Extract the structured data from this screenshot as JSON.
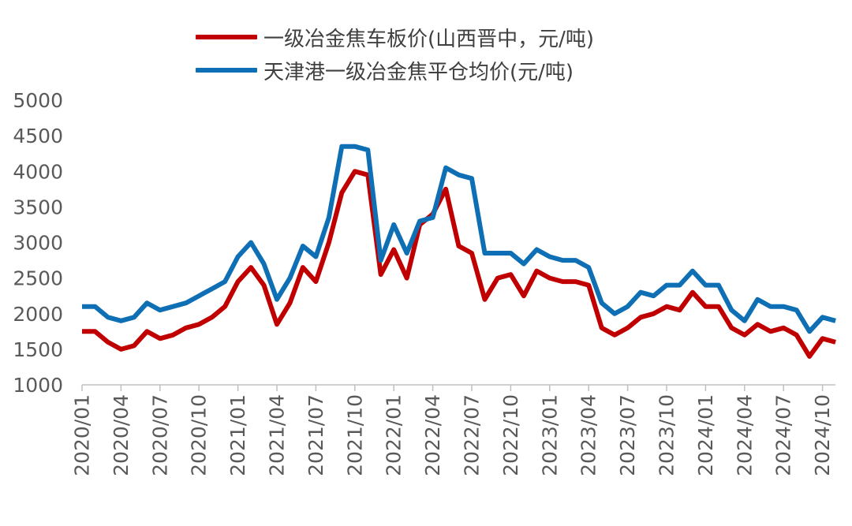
{
  "chart_data": {
    "type": "line",
    "title": "",
    "xlabel": "",
    "ylabel": "",
    "ylim": [
      1000,
      5000
    ],
    "yticks": [
      "5000",
      "4500",
      "4000",
      "3500",
      "3000",
      "2500",
      "2000",
      "1500",
      "1000"
    ],
    "xticks": [
      "2020/01",
      "2020/04",
      "2020/07",
      "2020/10",
      "2021/01",
      "2021/04",
      "2021/07",
      "2021/10",
      "2022/01",
      "2022/04",
      "2022/07",
      "2022/10",
      "2023/01",
      "2023/04",
      "2023/07",
      "2023/10",
      "2024/01",
      "2024/04",
      "2024/07",
      "2024/10"
    ],
    "x_start": "2020/01",
    "x_end": "2024/11",
    "grid": false,
    "legend_position": "top",
    "series": [
      {
        "name": "一级冶金焦车板价(山西晋中，元/吨)",
        "color": "#C00000",
        "points": [
          [
            "2020/01",
            1750
          ],
          [
            "2020/02",
            1750
          ],
          [
            "2020/03",
            1600
          ],
          [
            "2020/04",
            1500
          ],
          [
            "2020/05",
            1550
          ],
          [
            "2020/06",
            1750
          ],
          [
            "2020/07",
            1650
          ],
          [
            "2020/08",
            1700
          ],
          [
            "2020/09",
            1800
          ],
          [
            "2020/10",
            1850
          ],
          [
            "2020/11",
            1950
          ],
          [
            "2020/12",
            2100
          ],
          [
            "2021/01",
            2450
          ],
          [
            "2021/02",
            2650
          ],
          [
            "2021/03",
            2400
          ],
          [
            "2021/04",
            1850
          ],
          [
            "2021/05",
            2150
          ],
          [
            "2021/06",
            2650
          ],
          [
            "2021/07",
            2450
          ],
          [
            "2021/08",
            3000
          ],
          [
            "2021/09",
            3700
          ],
          [
            "2021/10",
            4000
          ],
          [
            "2021/11",
            3950
          ],
          [
            "2021/12",
            2550
          ],
          [
            "2022/01",
            2900
          ],
          [
            "2022/02",
            2500
          ],
          [
            "2022/03",
            3250
          ],
          [
            "2022/04",
            3400
          ],
          [
            "2022/05",
            3750
          ],
          [
            "2022/06",
            2950
          ],
          [
            "2022/07",
            2850
          ],
          [
            "2022/08",
            2200
          ],
          [
            "2022/09",
            2500
          ],
          [
            "2022/10",
            2550
          ],
          [
            "2022/11",
            2250
          ],
          [
            "2022/12",
            2600
          ],
          [
            "2023/01",
            2500
          ],
          [
            "2023/02",
            2450
          ],
          [
            "2023/03",
            2450
          ],
          [
            "2023/04",
            2400
          ],
          [
            "2023/05",
            1800
          ],
          [
            "2023/06",
            1700
          ],
          [
            "2023/07",
            1800
          ],
          [
            "2023/08",
            1950
          ],
          [
            "2023/09",
            2000
          ],
          [
            "2023/10",
            2100
          ],
          [
            "2023/11",
            2050
          ],
          [
            "2023/12",
            2300
          ],
          [
            "2024/01",
            2100
          ],
          [
            "2024/02",
            2100
          ],
          [
            "2024/03",
            1800
          ],
          [
            "2024/04",
            1700
          ],
          [
            "2024/05",
            1850
          ],
          [
            "2024/06",
            1750
          ],
          [
            "2024/07",
            1800
          ],
          [
            "2024/08",
            1700
          ],
          [
            "2024/09",
            1400
          ],
          [
            "2024/10",
            1650
          ],
          [
            "2024/11",
            1600
          ]
        ]
      },
      {
        "name": "天津港一级冶金焦平仓均价(元/吨)",
        "color": "#0F6FB5",
        "points": [
          [
            "2020/01",
            2100
          ],
          [
            "2020/02",
            2100
          ],
          [
            "2020/03",
            1950
          ],
          [
            "2020/04",
            1900
          ],
          [
            "2020/05",
            1950
          ],
          [
            "2020/06",
            2150
          ],
          [
            "2020/07",
            2050
          ],
          [
            "2020/08",
            2100
          ],
          [
            "2020/09",
            2150
          ],
          [
            "2020/10",
            2250
          ],
          [
            "2020/11",
            2350
          ],
          [
            "2020/12",
            2450
          ],
          [
            "2021/01",
            2800
          ],
          [
            "2021/02",
            3000
          ],
          [
            "2021/03",
            2700
          ],
          [
            "2021/04",
            2200
          ],
          [
            "2021/05",
            2500
          ],
          [
            "2021/06",
            2950
          ],
          [
            "2021/07",
            2800
          ],
          [
            "2021/08",
            3350
          ],
          [
            "2021/09",
            4350
          ],
          [
            "2021/10",
            4350
          ],
          [
            "2021/11",
            4300
          ],
          [
            "2021/12",
            2750
          ],
          [
            "2022/01",
            3250
          ],
          [
            "2022/02",
            2850
          ],
          [
            "2022/03",
            3300
          ],
          [
            "2022/04",
            3350
          ],
          [
            "2022/05",
            4050
          ],
          [
            "2022/06",
            3950
          ],
          [
            "2022/07",
            3900
          ],
          [
            "2022/08",
            2850
          ],
          [
            "2022/09",
            2850
          ],
          [
            "2022/10",
            2850
          ],
          [
            "2022/11",
            2700
          ],
          [
            "2022/12",
            2900
          ],
          [
            "2023/01",
            2800
          ],
          [
            "2023/02",
            2750
          ],
          [
            "2023/03",
            2750
          ],
          [
            "2023/04",
            2650
          ],
          [
            "2023/05",
            2150
          ],
          [
            "2023/06",
            2000
          ],
          [
            "2023/07",
            2100
          ],
          [
            "2023/08",
            2300
          ],
          [
            "2023/09",
            2250
          ],
          [
            "2023/10",
            2400
          ],
          [
            "2023/11",
            2400
          ],
          [
            "2023/12",
            2600
          ],
          [
            "2024/01",
            2400
          ],
          [
            "2024/02",
            2400
          ],
          [
            "2024/03",
            2050
          ],
          [
            "2024/04",
            1900
          ],
          [
            "2024/05",
            2200
          ],
          [
            "2024/06",
            2100
          ],
          [
            "2024/07",
            2100
          ],
          [
            "2024/08",
            2050
          ],
          [
            "2024/09",
            1750
          ],
          [
            "2024/10",
            1950
          ],
          [
            "2024/11",
            1900
          ]
        ]
      }
    ]
  }
}
